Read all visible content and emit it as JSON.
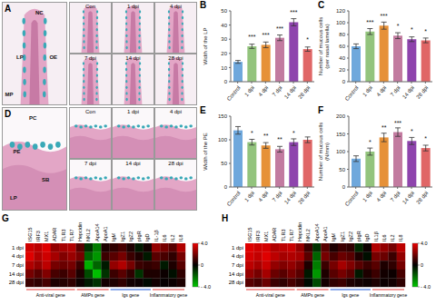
{
  "micrographs": [
    {
      "panel": "A",
      "kind": "lamella",
      "labels": [
        "NC",
        "OE",
        "LP",
        "MP"
      ],
      "titles": [
        "Con",
        "1 dpi",
        "4 dpi",
        "7 dpi",
        "14 dpi",
        "28 dpi"
      ]
    },
    {
      "panel": "D",
      "kind": "epithelium",
      "labels": [
        "PC",
        "PE",
        "SB",
        "LP"
      ],
      "titles": [
        "Con",
        "1 dpi",
        "4 dpi",
        "7 dpi",
        "14 dpi",
        "28 dpi"
      ]
    }
  ],
  "chart_data": [
    {
      "panel": "B",
      "type": "bar",
      "y_label": "Width of the LP",
      "categories": [
        "Control",
        "1 dpi",
        "4 dpi",
        "7 dpi",
        "14 dpi",
        "28 dpi"
      ],
      "values": [
        14,
        25,
        26,
        31,
        42,
        23
      ],
      "errors": [
        1,
        1.5,
        2,
        2,
        2.5,
        1.5
      ],
      "significance": [
        null,
        "***",
        "***",
        "***",
        "***",
        "*"
      ],
      "colors": [
        "#6fa8dc",
        "#93c47d",
        "#e69138",
        "#c27ba0",
        "#8e44ad",
        "#e06666"
      ],
      "ylim": [
        0,
        50
      ],
      "yticks": [
        0,
        10,
        20,
        30,
        40,
        50
      ]
    },
    {
      "panel": "C",
      "type": "bar",
      "y_label": "Number of mucous cells (per nasal lamella)",
      "categories": [
        "Control",
        "1 dpi",
        "4 dpi",
        "7 dpi",
        "14 dpi",
        "28 dpi"
      ],
      "values": [
        60,
        85,
        95,
        78,
        72,
        70
      ],
      "errors": [
        4,
        5,
        6,
        5,
        4,
        4
      ],
      "significance": [
        null,
        "***",
        "***",
        "*",
        "*",
        "*"
      ],
      "colors": [
        "#6fa8dc",
        "#93c47d",
        "#e69138",
        "#c27ba0",
        "#8e44ad",
        "#e06666"
      ],
      "ylim": [
        0,
        120
      ],
      "yticks": [
        0,
        20,
        40,
        60,
        80,
        100,
        120
      ]
    },
    {
      "panel": "E",
      "type": "bar",
      "y_label": "Width of the PE",
      "categories": [
        "Control",
        "1 dpi",
        "4 dpi",
        "7 dpi",
        "14 dpi",
        "28 dpi"
      ],
      "values": [
        120,
        95,
        88,
        80,
        95,
        100
      ],
      "errors": [
        8,
        6,
        6,
        6,
        7,
        6
      ],
      "significance": [
        null,
        "*",
        "**",
        "**",
        "*",
        null
      ],
      "colors": [
        "#6fa8dc",
        "#93c47d",
        "#e69138",
        "#c27ba0",
        "#8e44ad",
        "#e06666"
      ],
      "ylim": [
        0,
        150
      ],
      "yticks": [
        0,
        50,
        100,
        150
      ]
    },
    {
      "panel": "F",
      "type": "bar",
      "y_label": "Number of mucous cells (N/mm)",
      "categories": [
        "Control",
        "1 dpi",
        "4 dpi",
        "7 dpi",
        "14 dpi",
        "28 dpi"
      ],
      "values": [
        80,
        100,
        140,
        155,
        130,
        110
      ],
      "errors": [
        8,
        10,
        12,
        12,
        10,
        8
      ],
      "significance": [
        null,
        "*",
        "**",
        "***",
        "*",
        "*"
      ],
      "colors": [
        "#6fa8dc",
        "#93c47d",
        "#e69138",
        "#c27ba0",
        "#8e44ad",
        "#e06666"
      ],
      "ylim": [
        0,
        200
      ],
      "yticks": [
        0,
        50,
        100,
        150,
        200
      ]
    },
    {
      "panel": "G",
      "type": "heatmap",
      "rows": [
        "1 dpi",
        "4 dpi",
        "7 dpi",
        "14 dpi",
        "28 dpi"
      ],
      "groups": [
        {
          "name": "Anti-viral gene",
          "color": "#e53935",
          "genes": [
            "ISG15",
            "IRF3",
            "MX1",
            "ADAR",
            "TLR3",
            "TLR7"
          ]
        },
        {
          "name": "AMPs gene",
          "color": "#e53935",
          "genes": [
            "Hepcidin",
            "NKL2",
            "ApoA14",
            "ApoA1"
          ]
        },
        {
          "name": "Igs gene",
          "color": "#1e5bd6",
          "genes": [
            "IgM",
            "IgZ1",
            "IgZ2",
            "pIgR",
            "IgD"
          ]
        },
        {
          "name": "Inflammatory gene",
          "color": "#e53935",
          "genes": [
            "IL-1β",
            "IL6",
            "IL2",
            "IL8"
          ]
        }
      ],
      "cells": [
        [
          3.5,
          3.2,
          3.8,
          2.5,
          2.8,
          3.0,
          1.5,
          -1.0,
          -2.5,
          0.5,
          0.8,
          1.2,
          0.5,
          -0.5,
          0.3,
          2.5,
          2.0,
          1.5,
          3.0
        ],
        [
          3.8,
          3.0,
          3.5,
          2.8,
          2.2,
          2.6,
          2.0,
          -2.0,
          -3.0,
          1.0,
          1.5,
          2.0,
          1.0,
          0.5,
          -0.5,
          1.5,
          1.2,
          0.8,
          2.0
        ],
        [
          3.0,
          2.5,
          3.2,
          2.0,
          1.8,
          2.0,
          1.0,
          -3.5,
          -2.0,
          -0.5,
          2.5,
          3.0,
          2.0,
          1.0,
          0.8,
          1.0,
          -0.5,
          0.5,
          1.5
        ],
        [
          2.0,
          1.5,
          2.2,
          1.2,
          1.0,
          1.5,
          0.5,
          -1.5,
          -3.8,
          -1.0,
          1.0,
          1.5,
          0.8,
          -1.0,
          0.5,
          0.5,
          0.2,
          -0.3,
          0.8
        ],
        [
          1.0,
          0.8,
          1.2,
          0.5,
          0.6,
          0.8,
          0.2,
          -0.5,
          -1.0,
          0.3,
          0.5,
          0.8,
          0.3,
          0.2,
          -0.2,
          0.3,
          0.1,
          0.2,
          0.5
        ]
      ],
      "colorbar": {
        "range": [
          -4,
          4
        ],
        "ticks": [
          {
            "value": 4,
            "label": "4.0"
          },
          0,
          {
            "value": -4,
            "label": "- 4.0"
          }
        ]
      }
    },
    {
      "panel": "H",
      "type": "heatmap",
      "rows": [
        "1 dpi",
        "4 dpi",
        "7 dpi",
        "14 dpi",
        "28 dpi"
      ],
      "groups": [
        {
          "name": "Anti-viral gene",
          "color": "#e53935",
          "genes": [
            "ISG15",
            "IRF3",
            "MX1",
            "ADAR",
            "TLR3",
            "TLR7"
          ]
        },
        {
          "name": "AMPs gene",
          "color": "#e53935",
          "genes": [
            "Hepcidin",
            "NKL2",
            "ApoA14",
            "ApoA1"
          ]
        },
        {
          "name": "Igs gene",
          "color": "#1e5bd6",
          "genes": [
            "IgM",
            "IgZ1",
            "IgZ2",
            "pIgR",
            "IgD"
          ]
        },
        {
          "name": "Inflammatory gene",
          "color": "#e53935",
          "genes": [
            "IL1β",
            "IL6",
            "IL2",
            "IL8"
          ]
        }
      ],
      "cells": [
        [
          3.8,
          3.5,
          3.6,
          3.0,
          3.2,
          3.4,
          2.5,
          1.0,
          -1.0,
          1.5,
          0.5,
          1.0,
          0.8,
          -0.8,
          0.2,
          3.0,
          2.5,
          2.0,
          3.2
        ],
        [
          3.6,
          3.3,
          3.8,
          3.2,
          2.8,
          3.0,
          2.8,
          1.5,
          -2.0,
          2.0,
          1.2,
          1.8,
          1.5,
          0.5,
          -0.3,
          2.0,
          1.8,
          1.0,
          2.5
        ],
        [
          3.2,
          2.8,
          3.4,
          2.5,
          2.2,
          2.5,
          2.0,
          0.5,
          -2.5,
          1.0,
          2.0,
          2.8,
          2.2,
          1.5,
          1.0,
          1.5,
          0.5,
          0.8,
          2.0
        ],
        [
          2.5,
          2.0,
          2.8,
          1.8,
          1.5,
          2.0,
          1.5,
          -0.5,
          -3.0,
          0.5,
          1.5,
          2.0,
          1.5,
          -0.5,
          0.5,
          1.0,
          0.3,
          0.2,
          1.2
        ],
        [
          1.5,
          1.2,
          1.8,
          1.0,
          0.8,
          1.2,
          0.8,
          -0.2,
          -1.5,
          0.3,
          0.8,
          1.0,
          0.5,
          0.3,
          0.2,
          0.5,
          0.2,
          0.3,
          0.8
        ]
      ],
      "colorbar": {
        "range": [
          -4,
          4
        ],
        "ticks": [
          {
            "value": 4,
            "label": "4.0"
          },
          0,
          {
            "value": -4,
            "label": "- 4.0"
          }
        ]
      }
    }
  ]
}
